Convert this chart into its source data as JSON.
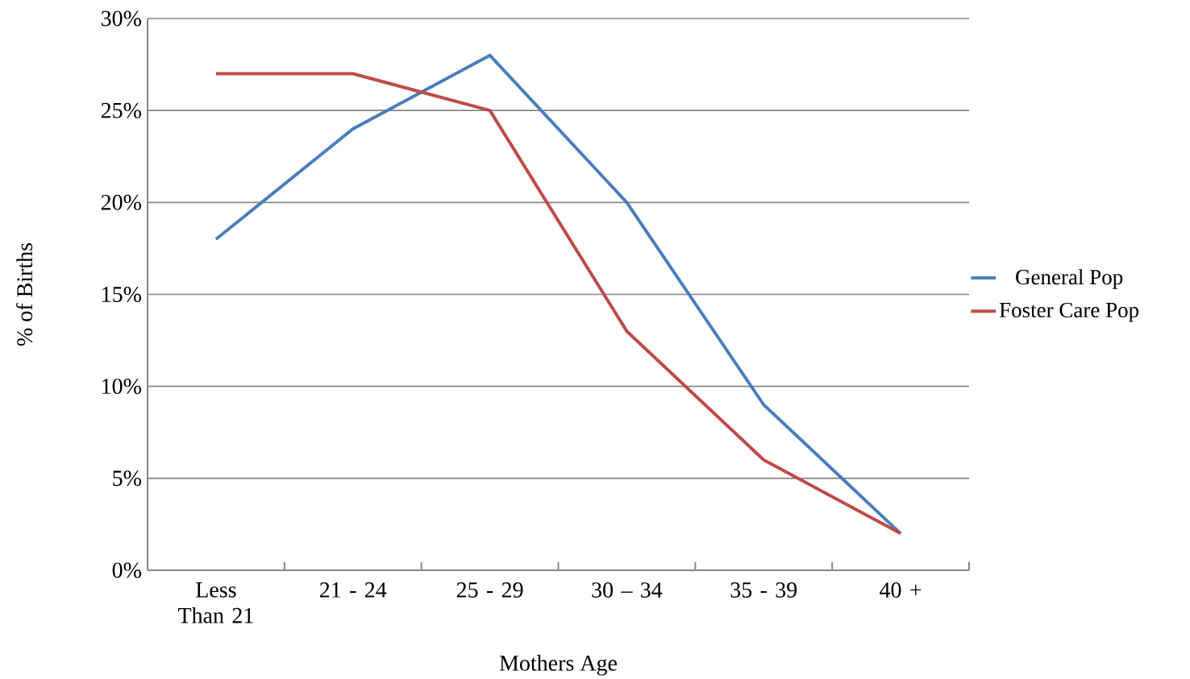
{
  "chart_data": {
    "type": "line",
    "xlabel": "Mothers Age",
    "ylabel": "% of Births",
    "categories": [
      "Less Than 21",
      "21 - 24",
      "25 - 29",
      "30 – 34",
      "35 - 39",
      "40 +"
    ],
    "series": [
      {
        "name": "General Pop",
        "color": "#4a7ebb",
        "values": [
          18,
          24,
          28,
          20,
          9,
          2
        ]
      },
      {
        "name": "Foster Care Pop",
        "color": "#be4b48",
        "values": [
          27,
          27,
          25,
          13,
          6,
          2
        ]
      }
    ],
    "ylim": [
      0,
      30
    ],
    "yticks": [
      {
        "value": 0,
        "label": "0%"
      },
      {
        "value": 5,
        "label": "5%"
      },
      {
        "value": 10,
        "label": "10%"
      },
      {
        "value": 15,
        "label": "15%"
      },
      {
        "value": 20,
        "label": "20%"
      },
      {
        "value": 25,
        "label": "25%"
      },
      {
        "value": 30,
        "label": "30%"
      }
    ],
    "grid": "y",
    "legend": "right",
    "marker": "none",
    "line_style": "solid"
  }
}
